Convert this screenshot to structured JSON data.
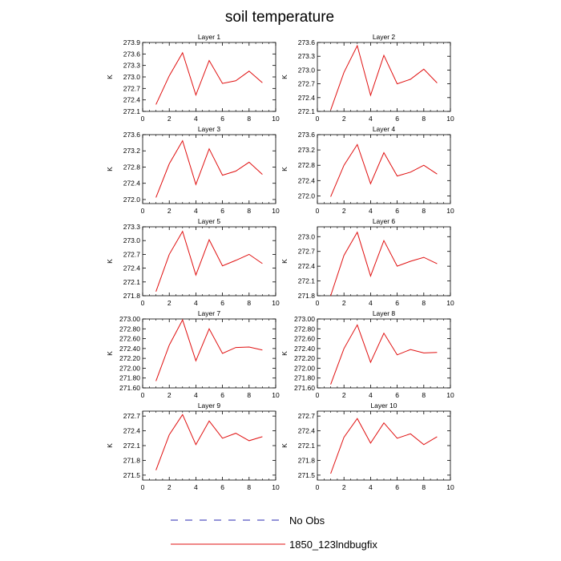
{
  "title": "soil temperature",
  "legend": [
    {
      "label": "No Obs",
      "color": "#2a2ab0",
      "style": "dashed"
    },
    {
      "label": "1850_123lndbugfix",
      "color": "#e01010",
      "style": "solid"
    }
  ],
  "chart_data": [
    {
      "type": "line",
      "title": "Layer 1",
      "ylabel": "K",
      "xlim": [
        0,
        10
      ],
      "xticks": [
        "0",
        "2",
        "4",
        "6",
        "8",
        "10"
      ],
      "ylim": [
        272.1,
        273.9
      ],
      "yticks": [
        "272.1",
        "272.4",
        "272.7",
        "273.0",
        "273.3",
        "273.6",
        "273.9"
      ],
      "series": [
        {
          "name": "1850_123lndbugfix",
          "x": [
            1,
            2,
            3,
            4,
            5,
            6,
            7,
            8,
            9
          ],
          "values": [
            272.28,
            273.03,
            273.63,
            272.53,
            273.43,
            272.83,
            272.9,
            273.15,
            272.85
          ]
        }
      ]
    },
    {
      "type": "line",
      "title": "Layer 2",
      "ylabel": "K",
      "xlim": [
        0,
        10
      ],
      "xticks": [
        "0",
        "2",
        "4",
        "6",
        "8",
        "10"
      ],
      "ylim": [
        272.1,
        273.6
      ],
      "yticks": [
        "272.1",
        "272.4",
        "272.7",
        "273.0",
        "273.3",
        "273.6"
      ],
      "series": [
        {
          "name": "1850_123lndbugfix",
          "x": [
            1,
            2,
            3,
            4,
            5,
            6,
            7,
            8,
            9
          ],
          "values": [
            272.13,
            272.95,
            273.53,
            272.45,
            273.32,
            272.7,
            272.8,
            273.02,
            272.72
          ]
        }
      ]
    },
    {
      "type": "line",
      "title": "Layer 3",
      "ylabel": "K",
      "xlim": [
        0,
        10
      ],
      "xticks": [
        "0",
        "2",
        "4",
        "6",
        "8",
        "10"
      ],
      "ylim": [
        271.9,
        273.6
      ],
      "yticks": [
        "272.0",
        "272.4",
        "272.8",
        "273.2",
        "273.6"
      ],
      "series": [
        {
          "name": "1850_123lndbugfix",
          "x": [
            1,
            2,
            3,
            4,
            5,
            6,
            7,
            8,
            9
          ],
          "values": [
            272.05,
            272.88,
            273.45,
            272.37,
            273.25,
            272.6,
            272.7,
            272.92,
            272.62
          ]
        }
      ]
    },
    {
      "type": "line",
      "title": "Layer 4",
      "ylabel": "K",
      "xlim": [
        0,
        10
      ],
      "xticks": [
        "0",
        "2",
        "4",
        "6",
        "8",
        "10"
      ],
      "ylim": [
        271.8,
        273.6
      ],
      "yticks": [
        "272.0",
        "272.4",
        "272.8",
        "273.2",
        "273.6"
      ],
      "series": [
        {
          "name": "1850_123lndbugfix",
          "x": [
            1,
            2,
            3,
            4,
            5,
            6,
            7,
            8,
            9
          ],
          "values": [
            271.98,
            272.8,
            273.34,
            272.32,
            273.13,
            272.52,
            272.62,
            272.8,
            272.57
          ]
        }
      ]
    },
    {
      "type": "line",
      "title": "Layer 5",
      "ylabel": "K",
      "xlim": [
        0,
        10
      ],
      "xticks": [
        "0",
        "2",
        "4",
        "6",
        "8",
        "10"
      ],
      "ylim": [
        271.8,
        273.3
      ],
      "yticks": [
        "271.8",
        "272.1",
        "272.4",
        "272.7",
        "273.0",
        "273.3"
      ],
      "series": [
        {
          "name": "1850_123lndbugfix",
          "x": [
            1,
            2,
            3,
            4,
            5,
            6,
            7,
            8,
            9
          ],
          "values": [
            271.89,
            272.7,
            273.2,
            272.25,
            273.02,
            272.45,
            272.57,
            272.7,
            272.5
          ]
        }
      ]
    },
    {
      "type": "line",
      "title": "Layer 6",
      "ylabel": "K",
      "xlim": [
        0,
        10
      ],
      "xticks": [
        "0",
        "2",
        "4",
        "6",
        "8",
        "10"
      ],
      "ylim": [
        271.8,
        273.2
      ],
      "yticks": [
        "271.8",
        "272.1",
        "272.4",
        "272.7",
        "273.0"
      ],
      "series": [
        {
          "name": "1850_123lndbugfix",
          "x": [
            1,
            2,
            3,
            4,
            5,
            6,
            7,
            8,
            9
          ],
          "values": [
            271.8,
            272.62,
            273.09,
            272.2,
            272.92,
            272.4,
            272.5,
            272.58,
            272.45
          ]
        }
      ]
    },
    {
      "type": "line",
      "title": "Layer 7",
      "ylabel": "K",
      "xlim": [
        0,
        10
      ],
      "xticks": [
        "0",
        "2",
        "4",
        "6",
        "8",
        "10"
      ],
      "ylim": [
        271.6,
        273.0
      ],
      "yticks": [
        "271.60",
        "271.80",
        "272.00",
        "272.20",
        "272.40",
        "272.60",
        "272.80",
        "273.00"
      ],
      "series": [
        {
          "name": "1850_123lndbugfix",
          "x": [
            1,
            2,
            3,
            4,
            5,
            6,
            7,
            8,
            9
          ],
          "values": [
            271.74,
            272.47,
            272.98,
            272.15,
            272.8,
            272.3,
            272.42,
            272.43,
            272.37
          ]
        }
      ]
    },
    {
      "type": "line",
      "title": "Layer 8",
      "ylabel": "K",
      "xlim": [
        0,
        10
      ],
      "xticks": [
        "0",
        "2",
        "4",
        "6",
        "8",
        "10"
      ],
      "ylim": [
        271.6,
        273.0
      ],
      "yticks": [
        "271.60",
        "271.80",
        "272.00",
        "272.20",
        "272.40",
        "272.60",
        "272.80",
        "273.00"
      ],
      "series": [
        {
          "name": "1850_123lndbugfix",
          "x": [
            1,
            2,
            3,
            4,
            5,
            6,
            7,
            8,
            9
          ],
          "values": [
            271.67,
            272.4,
            272.88,
            272.12,
            272.71,
            272.27,
            272.38,
            272.31,
            272.32
          ]
        }
      ]
    },
    {
      "type": "line",
      "title": "Layer 9",
      "ylabel": "K",
      "xlim": [
        0,
        10
      ],
      "xticks": [
        "0",
        "2",
        "4",
        "6",
        "8",
        "10"
      ],
      "ylim": [
        271.4,
        272.8
      ],
      "yticks": [
        "271.5",
        "271.8",
        "272.1",
        "272.4",
        "272.7"
      ],
      "series": [
        {
          "name": "1850_123lndbugfix",
          "x": [
            1,
            2,
            3,
            4,
            5,
            6,
            7,
            8,
            9
          ],
          "values": [
            271.6,
            272.32,
            272.73,
            272.12,
            272.6,
            272.25,
            272.35,
            272.2,
            272.28
          ]
        }
      ]
    },
    {
      "type": "line",
      "title": "Layer 10",
      "ylabel": "K",
      "xlim": [
        0,
        10
      ],
      "xticks": [
        "0",
        "2",
        "4",
        "6",
        "8",
        "10"
      ],
      "ylim": [
        271.4,
        272.8
      ],
      "yticks": [
        "271.5",
        "271.8",
        "272.1",
        "272.4",
        "272.7"
      ],
      "series": [
        {
          "name": "1850_123lndbugfix",
          "x": [
            1,
            2,
            3,
            4,
            5,
            6,
            7,
            8,
            9
          ],
          "values": [
            271.53,
            272.27,
            272.65,
            272.15,
            272.56,
            272.25,
            272.34,
            272.12,
            272.28
          ]
        }
      ]
    }
  ]
}
